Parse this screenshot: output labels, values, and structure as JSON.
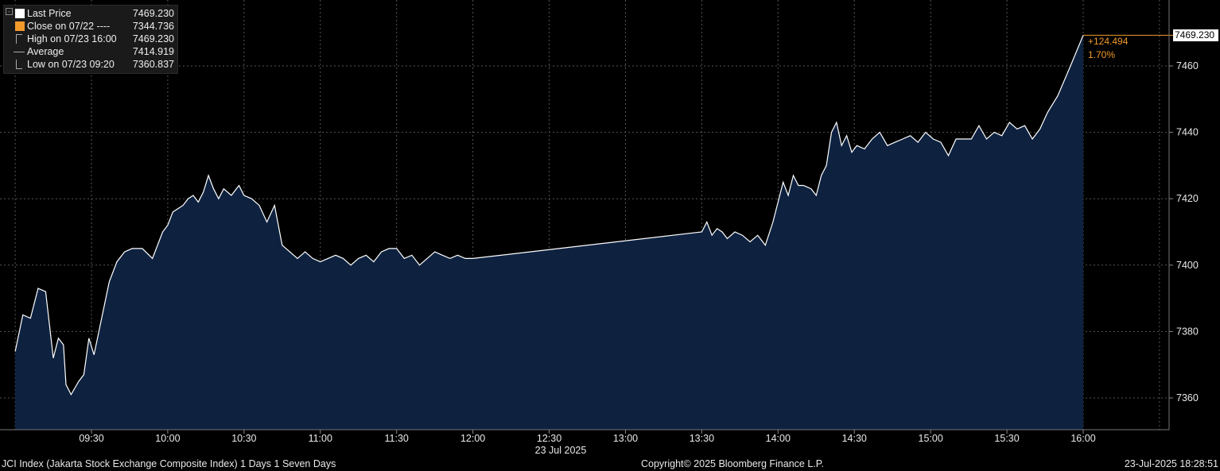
{
  "legend": {
    "last_price": {
      "label": "Last Price",
      "value": "7469.230",
      "color": "#ffffff"
    },
    "close": {
      "label": "Close on 07/22 ----",
      "value": "7344.736",
      "color": "#f39a2b"
    },
    "high": {
      "label": "High on 07/23 16:00",
      "value": "7469.230"
    },
    "average": {
      "label": "Average",
      "value": "7414.919"
    },
    "low": {
      "label": "Low on 07/23 09:20",
      "value": "7360.837"
    }
  },
  "last_tag": "7469.230",
  "change": {
    "abs": "+124.494",
    "pct": "1.70%"
  },
  "footer": {
    "left": "JCI Index (Jakarta Stock Exchange Composite Index) 1 Days 1 Seven Days",
    "center": "Copyright© 2025 Bloomberg Finance L.P.",
    "right": "23-Jul-2025 18:28:51"
  },
  "chart_data": {
    "type": "area",
    "date_label": "23 Jul 2025",
    "x_ticks": [
      "09:30",
      "10:00",
      "10:30",
      "11:00",
      "11:30",
      "12:00",
      "12:30",
      "13:00",
      "13:30",
      "14:00",
      "14:30",
      "15:00",
      "15:30",
      "16:00"
    ],
    "y_ticks": [
      7360,
      7380,
      7400,
      7420,
      7440,
      7460
    ],
    "ylim": [
      7350,
      7475
    ],
    "xlim": [
      "09:00",
      "16:17"
    ],
    "grid": true,
    "colors": {
      "line": "#ffffff",
      "fill": "#0e2240",
      "tag": "#f39a2b"
    },
    "series": [
      {
        "name": "Last Price",
        "x": [
          "09:00",
          "09:03",
          "09:06",
          "09:09",
          "09:12",
          "09:15",
          "09:17",
          "09:19",
          "09:20",
          "09:22",
          "09:25",
          "09:27",
          "09:29",
          "09:31",
          "09:34",
          "09:37",
          "09:40",
          "09:43",
          "09:46",
          "09:50",
          "09:54",
          "09:58",
          "10:00",
          "10:02",
          "10:04",
          "10:06",
          "10:08",
          "10:10",
          "10:12",
          "10:14",
          "10:16",
          "10:18",
          "10:20",
          "10:22",
          "10:25",
          "10:28",
          "10:30",
          "10:33",
          "10:36",
          "10:39",
          "10:42",
          "10:45",
          "10:48",
          "10:51",
          "10:54",
          "10:57",
          "11:00",
          "11:03",
          "11:06",
          "11:09",
          "11:12",
          "11:15",
          "11:18",
          "11:21",
          "11:24",
          "11:27",
          "11:30",
          "11:33",
          "11:36",
          "11:39",
          "11:42",
          "11:45",
          "11:48",
          "11:51",
          "11:54",
          "11:57",
          "12:00",
          "13:30",
          "13:32",
          "13:34",
          "13:36",
          "13:38",
          "13:40",
          "13:43",
          "13:46",
          "13:49",
          "13:52",
          "13:55",
          "13:58",
          "14:00",
          "14:02",
          "14:04",
          "14:06",
          "14:08",
          "14:10",
          "14:13",
          "14:15",
          "14:17",
          "14:19",
          "14:21",
          "14:23",
          "14:25",
          "14:27",
          "14:29",
          "14:31",
          "14:34",
          "14:37",
          "14:40",
          "14:43",
          "14:46",
          "14:49",
          "14:52",
          "14:55",
          "14:58",
          "15:01",
          "15:04",
          "15:07",
          "15:10",
          "15:13",
          "15:16",
          "15:19",
          "15:22",
          "15:25",
          "15:28",
          "15:31",
          "15:34",
          "15:37",
          "15:40",
          "15:43",
          "15:46",
          "15:50",
          "15:55",
          "16:00"
        ],
        "values": [
          7374,
          7385,
          7384,
          7393,
          7392,
          7372,
          7378,
          7376,
          7364,
          7361,
          7365,
          7367,
          7378,
          7373,
          7384,
          7395,
          7401,
          7404,
          7405,
          7405,
          7402,
          7410,
          7412,
          7416,
          7417,
          7418,
          7420,
          7421,
          7419,
          7422,
          7427,
          7423,
          7420,
          7423,
          7421,
          7424,
          7421,
          7420,
          7418,
          7413,
          7418,
          7406,
          7404,
          7402,
          7404,
          7402,
          7401,
          7402,
          7403,
          7402,
          7400,
          7402,
          7403,
          7401,
          7404,
          7405,
          7405,
          7402,
          7403,
          7400,
          7402,
          7404,
          7403,
          7402,
          7403,
          7402,
          7402,
          7410,
          7413,
          7409,
          7411,
          7410,
          7408,
          7410,
          7409,
          7407,
          7409,
          7406,
          7413,
          7419,
          7425,
          7421,
          7427,
          7424,
          7424,
          7423,
          7421,
          7427,
          7430,
          7440,
          7443,
          7436,
          7439,
          7434,
          7436,
          7435,
          7438,
          7440,
          7436,
          7437,
          7438,
          7439,
          7437,
          7440,
          7438,
          7437,
          7433,
          7438,
          7438,
          7438,
          7442,
          7438,
          7440,
          7439,
          7443,
          7441,
          7442,
          7438,
          7441,
          7446,
          7451,
          7460,
          7469.23
        ]
      }
    ]
  }
}
